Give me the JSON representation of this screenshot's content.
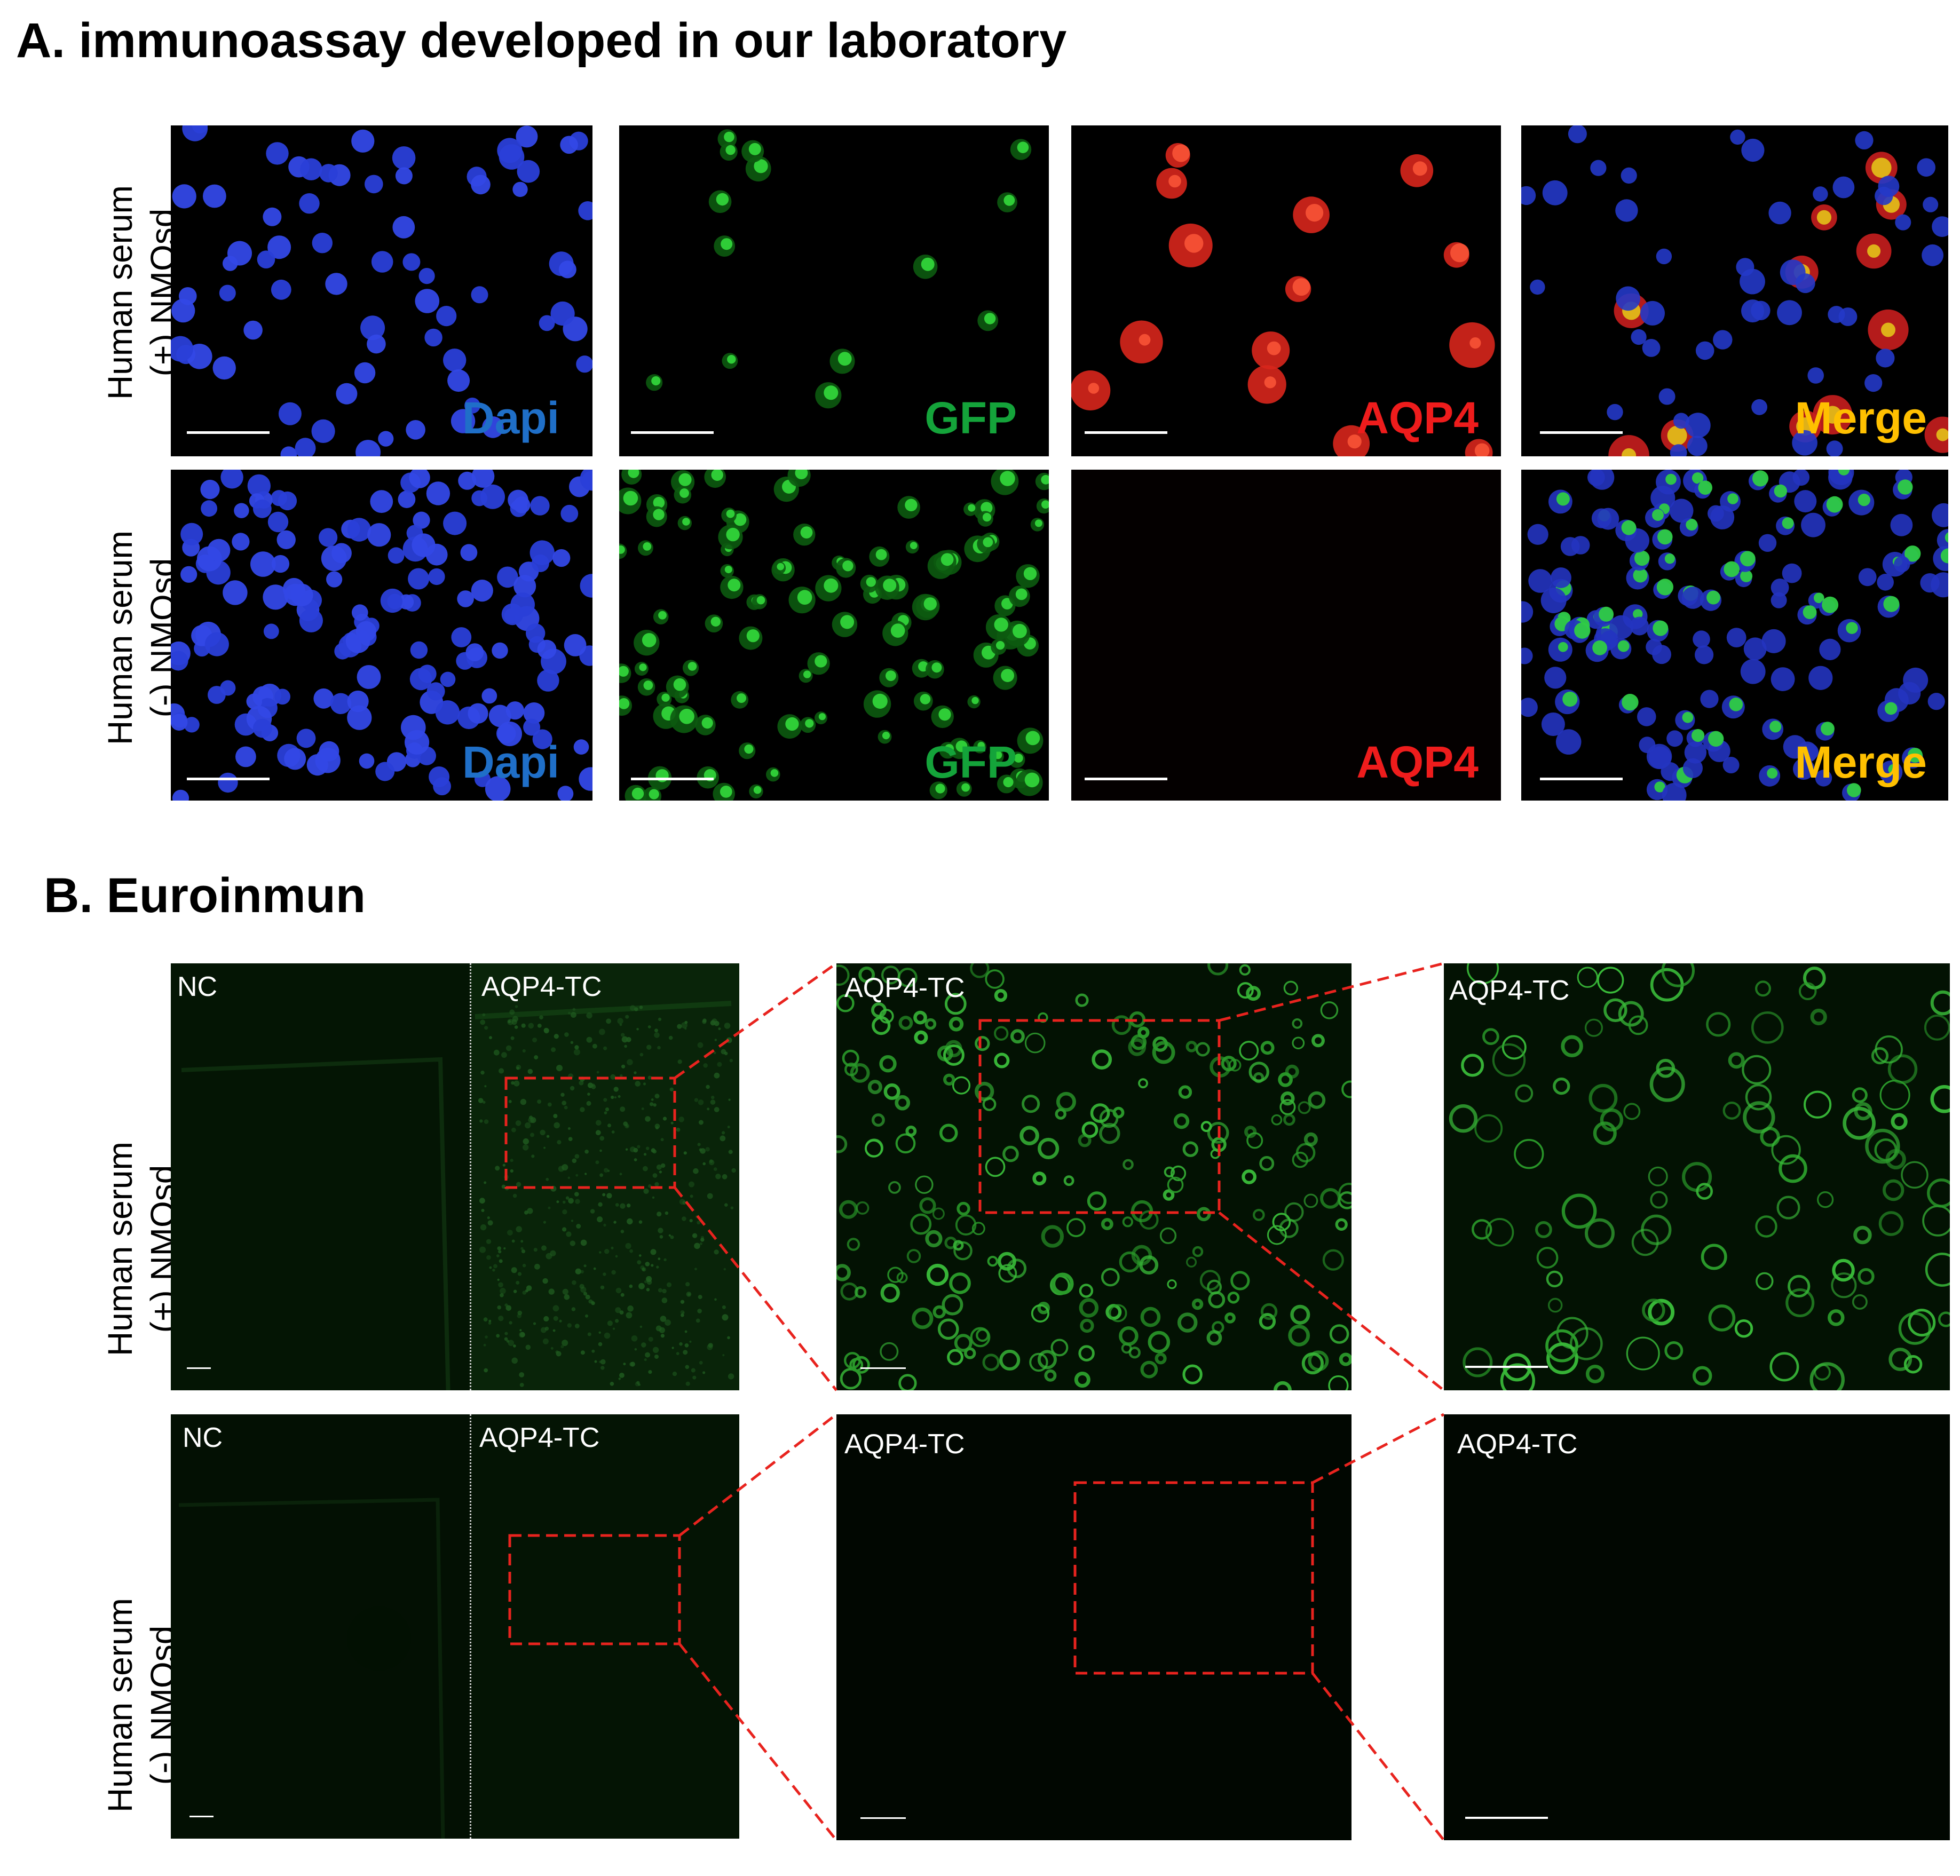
{
  "panelA": {
    "heading": "A. immunoassay developed in our laboratory",
    "rows": [
      {
        "line1": "Human serum",
        "line2": "(+) NMOsd"
      },
      {
        "line1": "Human serum",
        "line2": "(-) NMOsd"
      }
    ],
    "channels": [
      {
        "label": "Dapi",
        "color": "#1f6fc8"
      },
      {
        "label": "GFP",
        "color": "#14a33a"
      },
      {
        "label": "AQP4",
        "color": "#ee1c1c"
      },
      {
        "label": "Merge",
        "color": "#ffc000"
      }
    ]
  },
  "panelB": {
    "heading": "B. Euroinmun",
    "rows": [
      {
        "line1": "Human serum",
        "line2": "(+) NMOsd"
      },
      {
        "line1": "Human serum",
        "line2": "(-) NMOsd"
      }
    ],
    "labels": {
      "nc": "NC",
      "tc": "AQP4-TC"
    },
    "zoom_box_color": "#e8231e"
  }
}
